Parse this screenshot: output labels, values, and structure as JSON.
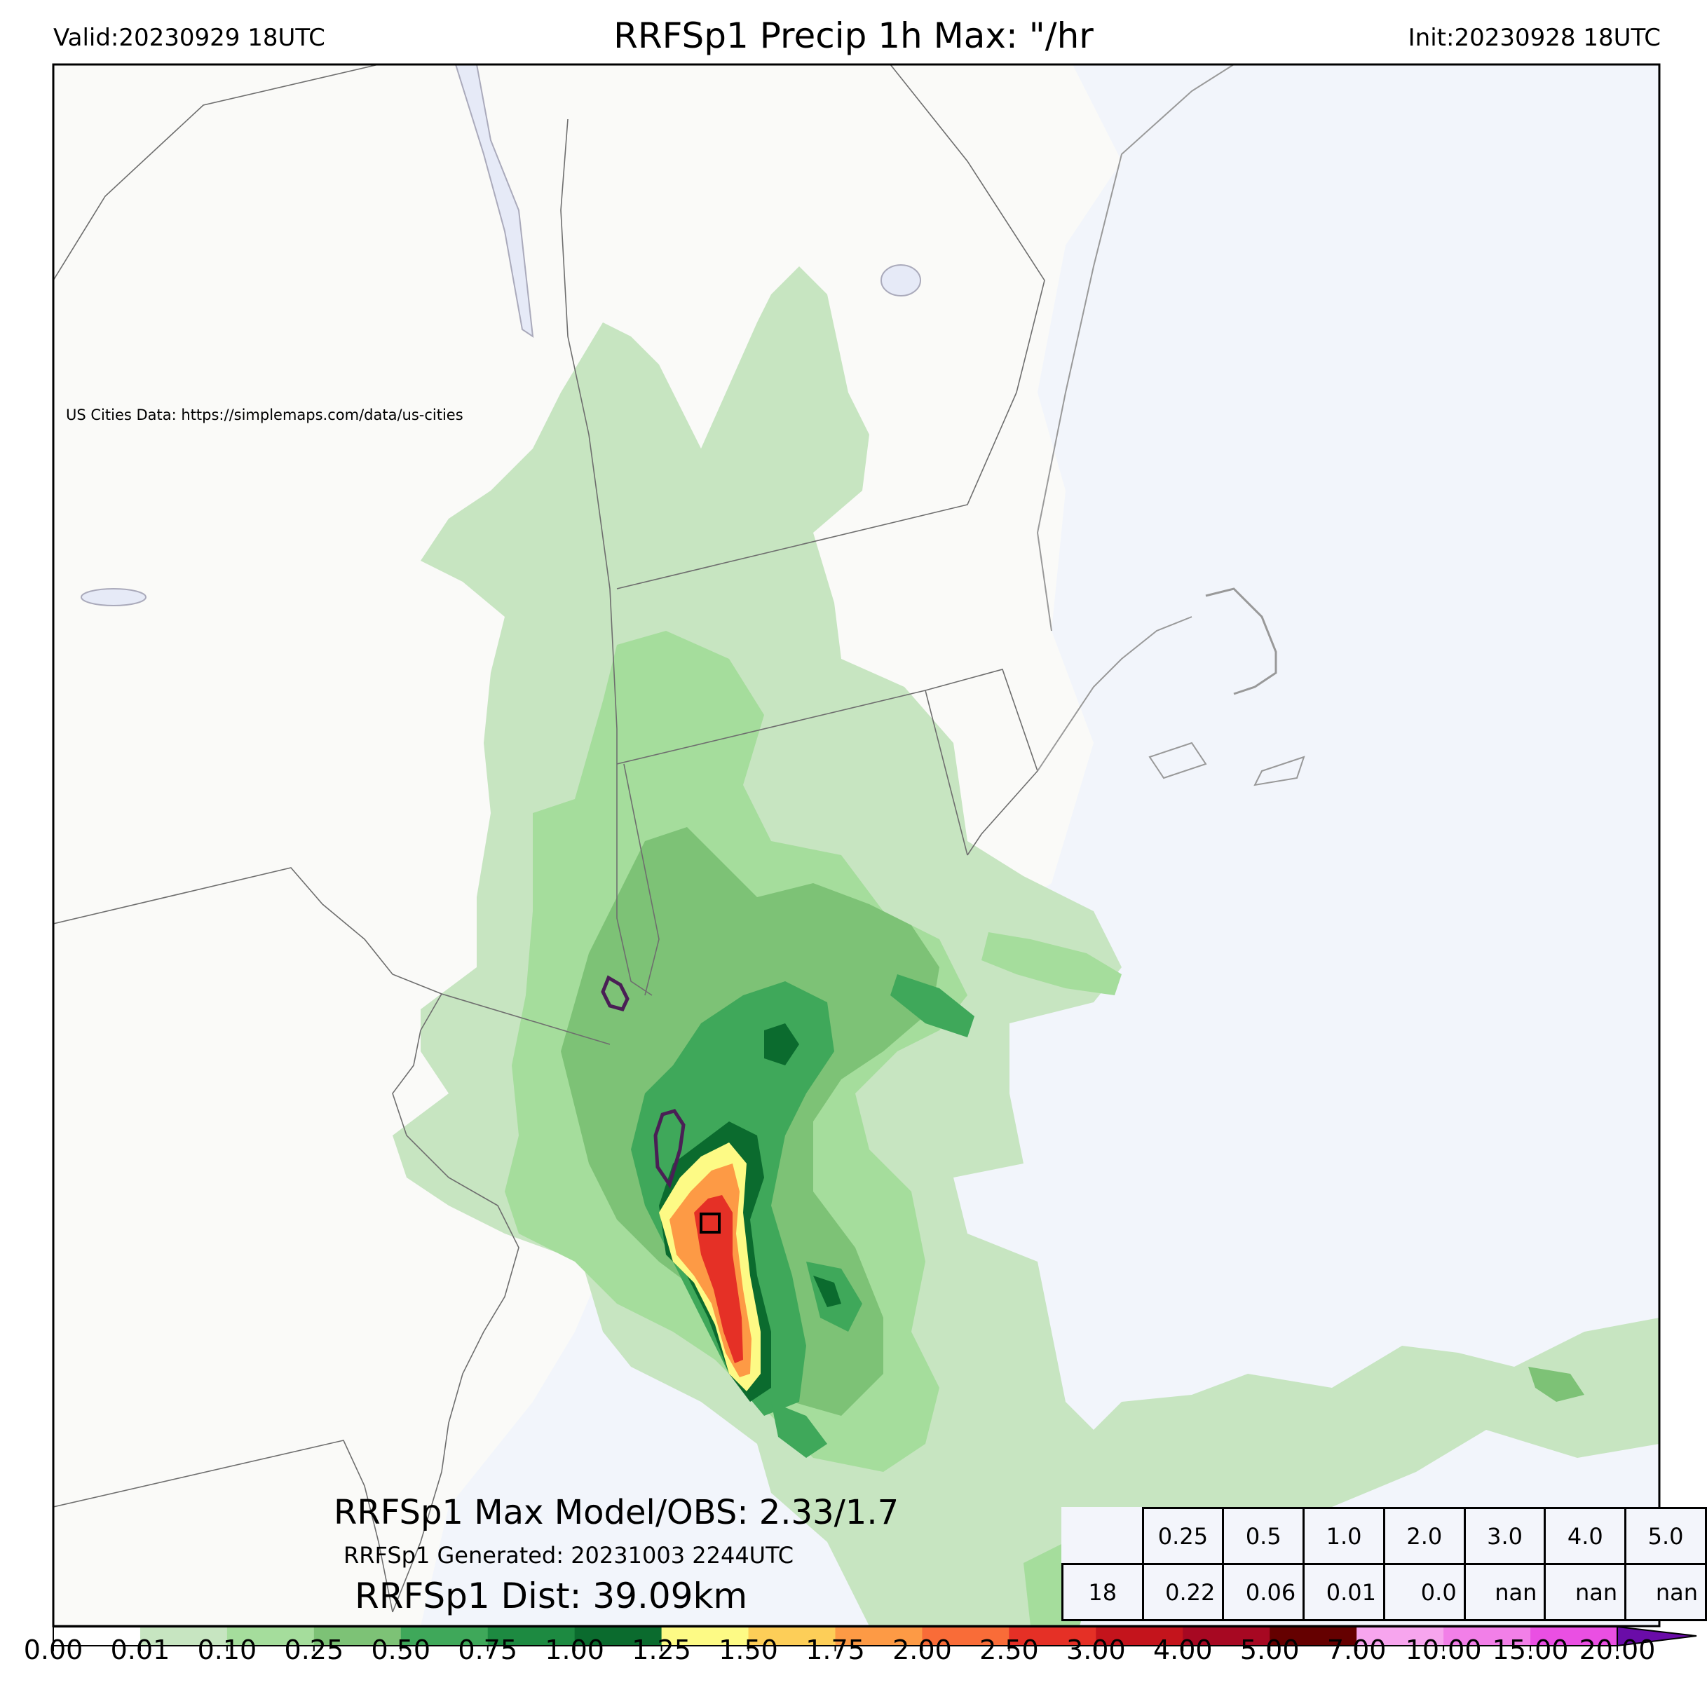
{
  "header": {
    "valid": "Valid:20230929 18UTC",
    "title": "RRFSp1 Precip 1h Max: \"/hr",
    "init": "Init:20230928 18UTC"
  },
  "map": {
    "attribution": "US Cities Data: https://simplemaps.com/data/us-cities",
    "colors": {
      "land": "#fafaf8",
      "water": "#f2f5fb",
      "lake": "#e6eaf7",
      "border": "#6e6e6e"
    }
  },
  "annotations": {
    "max_model_obs": "RRFSp1 Max Model/OBS: 2.33/1.7",
    "generated": "RRFSp1 Generated: 20231003 2244UTC",
    "distance": "RRFSp1 Dist: 39.09km"
  },
  "threshold_table": {
    "thresholds": [
      "0.25",
      "0.5",
      "1.0",
      "2.0",
      "3.0",
      "4.0",
      "5.0"
    ],
    "row_label": "18",
    "values": [
      "0.22",
      "0.06",
      "0.01",
      "0.0",
      "nan",
      "nan",
      "nan"
    ]
  },
  "colorbar": {
    "ticks": [
      "0.00",
      "0.01",
      "0.10",
      "0.25",
      "0.50",
      "0.75",
      "1.00",
      "1.25",
      "1.50",
      "1.75",
      "2.00",
      "2.50",
      "3.00",
      "4.00",
      "5.00",
      "7.00",
      "10.00",
      "15.00",
      "20.00"
    ],
    "colors": [
      "#ffffff",
      "#c7e5c1",
      "#a5dd9c",
      "#7dc276",
      "#3fa85a",
      "#1d8a41",
      "#0b6b2e",
      "#fdfa85",
      "#fdce58",
      "#fd9a45",
      "#f96c38",
      "#e53026",
      "#c4141c",
      "#a70822",
      "#650000",
      "#f7a5ee",
      "#f27fe8",
      "#ea4fe3",
      "#de17dd",
      "#9b0cd6",
      "#6a0ca8"
    ]
  }
}
